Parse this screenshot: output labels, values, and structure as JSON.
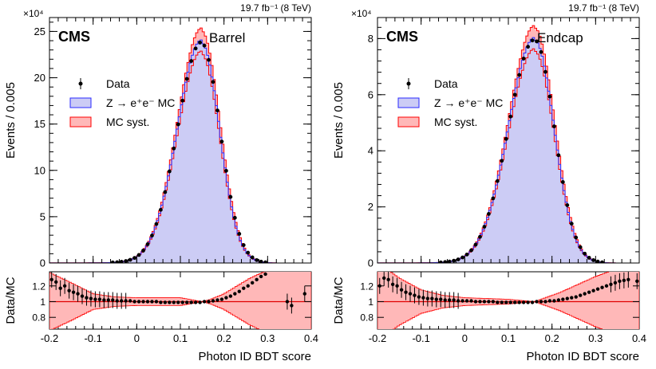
{
  "chart_data": [
    {
      "type": "histogram",
      "panel": "Barrel",
      "lumi_label": "19.7 fb⁻¹ (8 TeV)",
      "experiment": "CMS",
      "region_label": "Barrel",
      "ylabel": "Events / 0.005",
      "y_multiplier": "×10⁴",
      "ylim": [
        0,
        26.5
      ],
      "yticks": [
        0,
        5,
        10,
        15,
        20,
        25
      ],
      "xlabel": "Photon ID BDT score",
      "xlim": [
        -0.2,
        0.4
      ],
      "xticks": [
        -0.2,
        -0.1,
        0,
        0.1,
        0.2,
        0.3,
        0.4
      ],
      "peak": {
        "x": 0.148,
        "y": 23.8,
        "sigma_left": 0.055,
        "sigma_right": 0.042
      },
      "legend": [
        "Data",
        "Z → e⁺e⁻ MC",
        "MC syst."
      ],
      "ratio": {
        "ylabel": "Data/MC",
        "ylim": [
          0.65,
          1.38
        ],
        "yticks": [
          0.8,
          1,
          1.2
        ],
        "syst_band": [
          [
            -0.2,
            0.37
          ],
          [
            -0.15,
            0.24
          ],
          [
            -0.1,
            0.1
          ],
          [
            -0.05,
            0.06
          ],
          [
            0,
            0.05
          ],
          [
            0.05,
            0.05
          ],
          [
            0.1,
            0.05
          ],
          [
            0.13,
            0.02
          ],
          [
            0.15,
            0.0
          ],
          [
            0.17,
            0.03
          ],
          [
            0.2,
            0.1
          ],
          [
            0.23,
            0.2
          ],
          [
            0.26,
            0.3
          ],
          [
            0.3,
            0.4
          ],
          [
            0.4,
            0.5
          ]
        ],
        "points": [
          [
            -0.195,
            1.28
          ],
          [
            -0.185,
            1.25
          ],
          [
            -0.175,
            1.17
          ],
          [
            -0.165,
            1.2
          ],
          [
            -0.155,
            1.14
          ],
          [
            -0.145,
            1.12
          ],
          [
            -0.135,
            1.1
          ],
          [
            -0.125,
            1.07
          ],
          [
            -0.115,
            1.05
          ],
          [
            -0.105,
            1.04
          ],
          [
            -0.095,
            1.03
          ],
          [
            -0.085,
            1.03
          ],
          [
            -0.075,
            1.02
          ],
          [
            -0.065,
            1.02
          ],
          [
            -0.055,
            1.02
          ],
          [
            -0.045,
            1.01
          ],
          [
            -0.035,
            1.01
          ],
          [
            -0.025,
            1.01
          ],
          [
            -0.015,
            1.01
          ],
          [
            -0.005,
            1.0
          ],
          [
            0.005,
            1.0
          ],
          [
            0.015,
            1.0
          ],
          [
            0.025,
            1.0
          ],
          [
            0.035,
            1.0
          ],
          [
            0.045,
            1.0
          ],
          [
            0.055,
            0.99
          ],
          [
            0.065,
            0.99
          ],
          [
            0.075,
            0.99
          ],
          [
            0.085,
            0.99
          ],
          [
            0.095,
            0.99
          ],
          [
            0.105,
            0.99
          ],
          [
            0.115,
            0.99
          ],
          [
            0.125,
            0.99
          ],
          [
            0.135,
            0.99
          ],
          [
            0.145,
            0.99
          ],
          [
            0.155,
            1.0
          ],
          [
            0.165,
            1.0
          ],
          [
            0.175,
            1.01
          ],
          [
            0.185,
            1.02
          ],
          [
            0.195,
            1.03
          ],
          [
            0.205,
            1.05
          ],
          [
            0.215,
            1.07
          ],
          [
            0.225,
            1.1
          ],
          [
            0.235,
            1.13
          ],
          [
            0.245,
            1.17
          ],
          [
            0.255,
            1.2
          ],
          [
            0.265,
            1.24
          ],
          [
            0.275,
            1.28
          ],
          [
            0.285,
            1.32
          ],
          [
            0.295,
            1.35
          ],
          [
            0.345,
            1.0
          ],
          [
            0.355,
            0.95
          ],
          [
            0.385,
            1.1
          ]
        ]
      }
    },
    {
      "type": "histogram",
      "panel": "Endcap",
      "lumi_label": "19.7 fb⁻¹ (8 TeV)",
      "experiment": "CMS",
      "region_label": "Endcap",
      "ylabel": "Events / 0.005",
      "y_multiplier": "×10⁴",
      "ylim": [
        0,
        8.75
      ],
      "yticks": [
        0,
        2,
        4,
        6,
        8
      ],
      "xlabel": "Photon ID BDT score",
      "xlim": [
        -0.2,
        0.4
      ],
      "xticks": [
        -0.2,
        -0.1,
        0,
        0.1,
        0.2,
        0.3,
        0.4
      ],
      "peak": {
        "x": 0.16,
        "y": 7.95,
        "sigma_left": 0.06,
        "sigma_right": 0.045
      },
      "legend": [
        "Data",
        "Z → e⁺e⁻ MC",
        "MC syst."
      ],
      "ratio": {
        "ylabel": "Data/MC",
        "ylim": [
          0.65,
          1.38
        ],
        "yticks": [
          0.8,
          1,
          1.2
        ],
        "syst_band": [
          [
            -0.2,
            0.5
          ],
          [
            -0.15,
            0.3
          ],
          [
            -0.1,
            0.15
          ],
          [
            -0.05,
            0.08
          ],
          [
            0,
            0.05
          ],
          [
            0.05,
            0.04
          ],
          [
            0.1,
            0.03
          ],
          [
            0.14,
            0.01
          ],
          [
            0.16,
            0.0
          ],
          [
            0.18,
            0.04
          ],
          [
            0.22,
            0.12
          ],
          [
            0.26,
            0.22
          ],
          [
            0.3,
            0.32
          ],
          [
            0.35,
            0.42
          ],
          [
            0.4,
            0.5
          ]
        ],
        "points": [
          [
            -0.195,
            1.2
          ],
          [
            -0.185,
            1.3
          ],
          [
            -0.175,
            1.28
          ],
          [
            -0.165,
            1.22
          ],
          [
            -0.155,
            1.2
          ],
          [
            -0.145,
            1.15
          ],
          [
            -0.135,
            1.12
          ],
          [
            -0.125,
            1.1
          ],
          [
            -0.115,
            1.08
          ],
          [
            -0.105,
            1.06
          ],
          [
            -0.095,
            1.05
          ],
          [
            -0.085,
            1.04
          ],
          [
            -0.075,
            1.04
          ],
          [
            -0.065,
            1.03
          ],
          [
            -0.055,
            1.03
          ],
          [
            -0.045,
            1.02
          ],
          [
            -0.035,
            1.02
          ],
          [
            -0.025,
            1.02
          ],
          [
            -0.015,
            1.01
          ],
          [
            -0.005,
            1.01
          ],
          [
            0.005,
            1.01
          ],
          [
            0.015,
            1.01
          ],
          [
            0.025,
            1.0
          ],
          [
            0.035,
            1.0
          ],
          [
            0.045,
            1.0
          ],
          [
            0.055,
            1.0
          ],
          [
            0.065,
            1.0
          ],
          [
            0.075,
            0.99
          ],
          [
            0.085,
            0.99
          ],
          [
            0.095,
            0.99
          ],
          [
            0.105,
            0.99
          ],
          [
            0.115,
            0.99
          ],
          [
            0.125,
            0.99
          ],
          [
            0.135,
            0.99
          ],
          [
            0.145,
            0.99
          ],
          [
            0.155,
            0.99
          ],
          [
            0.165,
            1.0
          ],
          [
            0.175,
            1.0
          ],
          [
            0.185,
            1.0
          ],
          [
            0.195,
            1.01
          ],
          [
            0.205,
            1.01
          ],
          [
            0.215,
            1.02
          ],
          [
            0.225,
            1.03
          ],
          [
            0.235,
            1.04
          ],
          [
            0.245,
            1.05
          ],
          [
            0.255,
            1.06
          ],
          [
            0.265,
            1.08
          ],
          [
            0.275,
            1.1
          ],
          [
            0.285,
            1.12
          ],
          [
            0.295,
            1.14
          ],
          [
            0.305,
            1.16
          ],
          [
            0.315,
            1.18
          ],
          [
            0.325,
            1.2
          ],
          [
            0.335,
            1.22
          ],
          [
            0.345,
            1.24
          ],
          [
            0.355,
            1.26
          ],
          [
            0.365,
            1.27
          ],
          [
            0.375,
            1.28
          ],
          [
            0.395,
            1.26
          ]
        ]
      }
    }
  ],
  "colors": {
    "mc_fill": "#ccccf5",
    "mc_line": "#2a2aff",
    "syst_fill": "#ffb8b8",
    "syst_line": "#ff0000",
    "data": "#000000",
    "ratio_line": "#e00000"
  }
}
